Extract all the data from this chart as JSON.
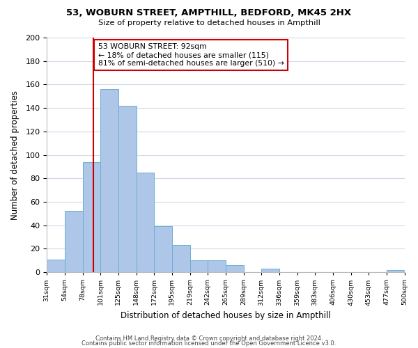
{
  "title": "53, WOBURN STREET, AMPTHILL, BEDFORD, MK45 2HX",
  "subtitle": "Size of property relative to detached houses in Ampthill",
  "xlabel": "Distribution of detached houses by size in Ampthill",
  "ylabel": "Number of detached properties",
  "footer_line1": "Contains HM Land Registry data © Crown copyright and database right 2024.",
  "footer_line2": "Contains public sector information licensed under the Open Government Licence v3.0.",
  "bin_labels": [
    "31sqm",
    "54sqm",
    "78sqm",
    "101sqm",
    "125sqm",
    "148sqm",
    "172sqm",
    "195sqm",
    "219sqm",
    "242sqm",
    "265sqm",
    "289sqm",
    "312sqm",
    "336sqm",
    "359sqm",
    "383sqm",
    "406sqm",
    "430sqm",
    "453sqm",
    "477sqm",
    "500sqm"
  ],
  "bar_values": [
    11,
    52,
    94,
    156,
    142,
    85,
    39,
    23,
    10,
    10,
    6,
    0,
    3,
    0,
    0,
    0,
    0,
    0,
    0,
    2
  ],
  "bar_color": "#aec6e8",
  "bar_edge_color": "#6baed6",
  "vline_color": "#cc0000",
  "annotation_text": "53 WOBURN STREET: 92sqm\n← 18% of detached houses are smaller (115)\n81% of semi-detached houses are larger (510) →",
  "annotation_box_edge": "#cc0000",
  "ylim": [
    0,
    200
  ],
  "yticks": [
    0,
    20,
    40,
    60,
    80,
    100,
    120,
    140,
    160,
    180,
    200
  ],
  "background_color": "#ffffff",
  "grid_color": "#d0d8e8",
  "bin_edges_val": [
    31,
    54,
    78,
    101,
    125,
    148,
    172,
    195,
    219,
    242,
    265,
    289,
    312,
    336,
    359,
    383,
    406,
    430,
    453,
    477,
    500
  ],
  "prop_val": 92
}
